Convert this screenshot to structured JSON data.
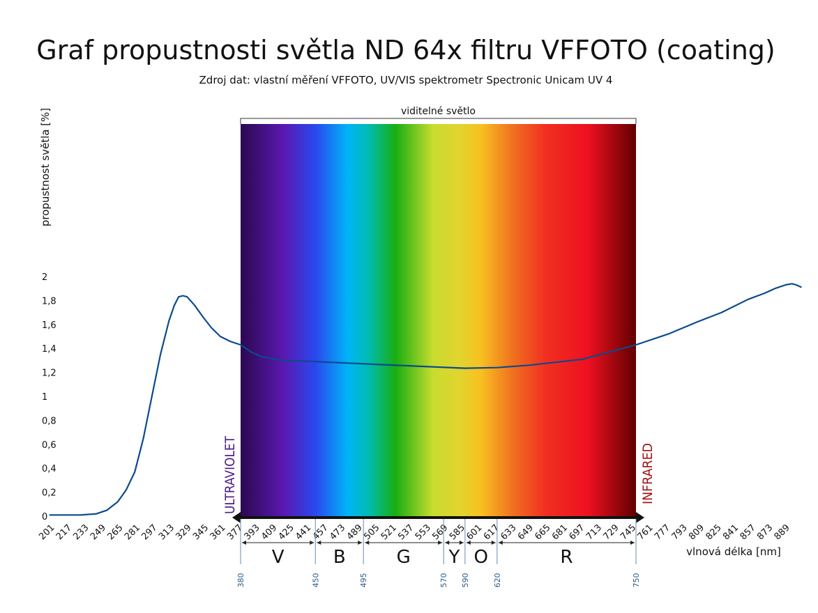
{
  "chart_data": {
    "type": "line",
    "title": "Graf propustnosti světla ND 64x filtru VFFOTO (coating)",
    "subtitle": "Zdroj dat: vlastní měření VFFOTO, UV/VIS spektrometr Spectronic Unicam UV 4",
    "xlabel": "vlnová délka [nm]",
    "ylabel": "propustnost světla [%]",
    "xlim": [
      200,
      905
    ],
    "ylim": [
      0,
      2
    ],
    "x_ticks": [
      201,
      217,
      233,
      249,
      265,
      281,
      297,
      313,
      329,
      345,
      361,
      377,
      393,
      409,
      425,
      441,
      457,
      473,
      489,
      505,
      521,
      537,
      553,
      569,
      585,
      601,
      617,
      633,
      649,
      665,
      681,
      697,
      713,
      729,
      745,
      761,
      777,
      793,
      809,
      825,
      841,
      857,
      873,
      889
    ],
    "y_ticks": [
      0,
      0.2,
      0.4,
      0.6,
      0.8,
      1,
      1.2,
      1.4,
      1.6,
      1.8,
      2
    ],
    "y_tick_labels": [
      "0",
      "0,2",
      "0,4",
      "0,6",
      "0,8",
      "1",
      "1,2",
      "1,4",
      "1,6",
      "1,8",
      "2"
    ],
    "grid": false,
    "series": [
      {
        "color": "#0b4a8c",
        "x": [
          201,
          230,
          245,
          255,
          265,
          273,
          281,
          289,
          297,
          305,
          313,
          318,
          322,
          326,
          330,
          337,
          345,
          353,
          361,
          370,
          380,
          390,
          400,
          420,
          450,
          500,
          550,
          590,
          620,
          650,
          700,
          750,
          780,
          807,
          830,
          855,
          870,
          880,
          890,
          896,
          900,
          905
        ],
        "y": [
          0.01,
          0.01,
          0.02,
          0.05,
          0.12,
          0.22,
          0.37,
          0.65,
          1.0,
          1.35,
          1.63,
          1.76,
          1.83,
          1.84,
          1.83,
          1.76,
          1.66,
          1.57,
          1.5,
          1.46,
          1.43,
          1.37,
          1.33,
          1.3,
          1.29,
          1.27,
          1.25,
          1.235,
          1.24,
          1.26,
          1.31,
          1.43,
          1.52,
          1.62,
          1.7,
          1.81,
          1.86,
          1.9,
          1.93,
          1.94,
          1.93,
          1.91
        ]
      }
    ],
    "visible_region": {
      "label": "viditelné světlo",
      "range": [
        380,
        750
      ]
    },
    "ultraviolet_label": "ULTRAVIOLET",
    "infrared_label": "INFRARED",
    "ultraviolet_color": "#4b1a8a",
    "infrared_color": "#a01010",
    "bands": [
      {
        "label": "V",
        "from": 380,
        "to": 450
      },
      {
        "label": "B",
        "from": 450,
        "to": 495
      },
      {
        "label": "G",
        "from": 495,
        "to": 570
      },
      {
        "label": "Y",
        "from": 570,
        "to": 590
      },
      {
        "label": "O",
        "from": 590,
        "to": 620
      },
      {
        "label": "R",
        "from": 620,
        "to": 750
      }
    ],
    "band_boundaries": [
      "380",
      "450",
      "495",
      "570",
      "590",
      "620",
      "750"
    ]
  }
}
